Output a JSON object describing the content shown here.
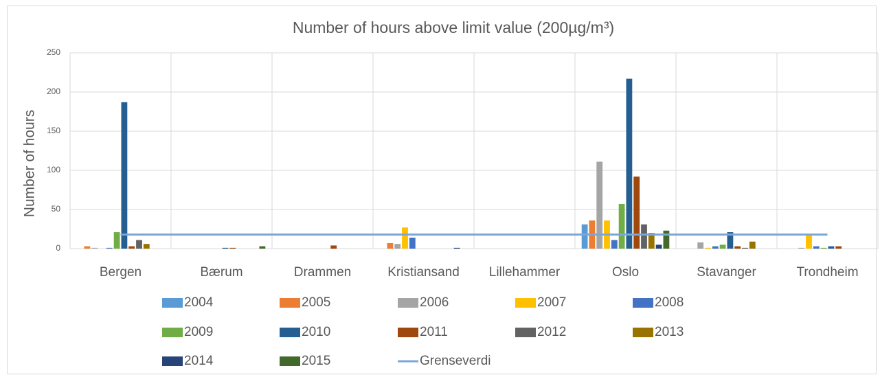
{
  "chart_data": {
    "type": "bar",
    "title": "Number of hours above limit value (200µg/m³)",
    "y_label": "Number of hours",
    "categories": [
      "Bergen",
      "Bærum",
      "Drammen",
      "Kristiansand",
      "Lillehammer",
      "Oslo",
      "Stavanger",
      "Trondheim"
    ],
    "ylim": [
      0,
      250
    ],
    "yticks": [
      0,
      50,
      100,
      150,
      200,
      250
    ],
    "grid": true,
    "series": [
      {
        "name": "2004",
        "color": "#5b9bd5",
        "values": [
          0,
          0,
          0,
          0,
          0,
          31,
          0,
          0
        ]
      },
      {
        "name": "2005",
        "color": "#ed7d31",
        "values": [
          3,
          0,
          0,
          7,
          0,
          36,
          0,
          0
        ]
      },
      {
        "name": "2006",
        "color": "#a5a5a5",
        "values": [
          1,
          0,
          0,
          6,
          0,
          111,
          8,
          1
        ]
      },
      {
        "name": "2007",
        "color": "#ffc000",
        "values": [
          0,
          0,
          0,
          27,
          0,
          36,
          1,
          18
        ]
      },
      {
        "name": "2008",
        "color": "#4472c4",
        "values": [
          1,
          0,
          0,
          14,
          0,
          11,
          3,
          3
        ]
      },
      {
        "name": "2009",
        "color": "#70ad47",
        "values": [
          21,
          0,
          0,
          0,
          0,
          57,
          5,
          1
        ]
      },
      {
        "name": "2010",
        "color": "#255e91",
        "values": [
          187,
          1,
          0,
          0,
          0,
          217,
          21,
          3
        ]
      },
      {
        "name": "2011",
        "color": "#9e480e",
        "values": [
          3,
          1,
          4,
          0,
          0,
          92,
          3,
          3
        ]
      },
      {
        "name": "2012",
        "color": "#636363",
        "values": [
          11,
          0,
          0,
          0,
          0,
          31,
          1,
          0
        ]
      },
      {
        "name": "2013",
        "color": "#997300",
        "values": [
          6,
          0,
          0,
          0,
          0,
          20,
          9,
          0
        ]
      },
      {
        "name": "2014",
        "color": "#264478",
        "values": [
          0,
          0,
          0,
          1,
          0,
          5,
          0,
          0
        ]
      },
      {
        "name": "2015",
        "color": "#43682b",
        "values": [
          0,
          3,
          0,
          0,
          0,
          23,
          0,
          0
        ]
      },
      {
        "name": "Grenseverdi",
        "type": "line",
        "color": "#7aa6d8",
        "values": [
          18,
          18,
          18,
          18,
          18,
          18,
          18,
          18
        ]
      }
    ]
  }
}
